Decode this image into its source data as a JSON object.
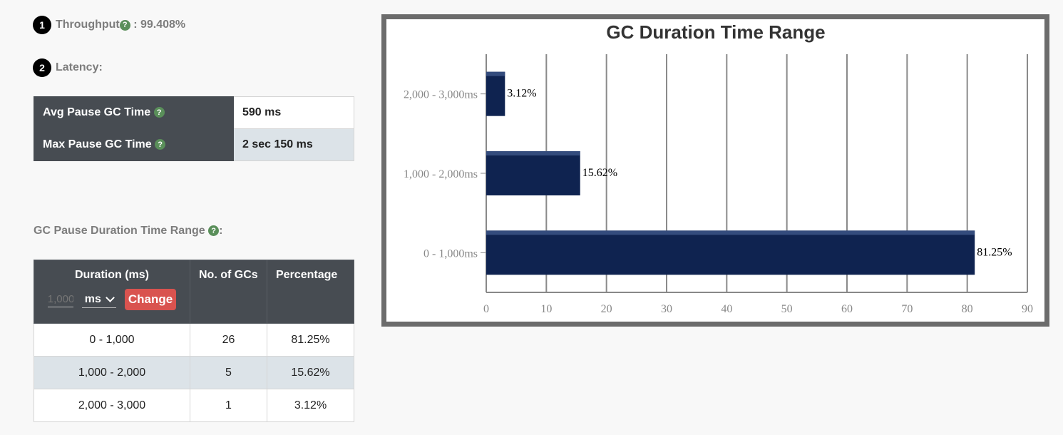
{
  "metrics": {
    "throughput": {
      "badge": "1",
      "label": "Throughput",
      "separator": " : ",
      "value": "99.408%"
    },
    "latency": {
      "badge": "2",
      "label": "Latency:"
    }
  },
  "help_glyph": "?",
  "latency_table": [
    {
      "label": "Avg Pause GC Time",
      "value": "590 ms"
    },
    {
      "label": "Max Pause GC Time",
      "value": "2 sec 150 ms"
    }
  ],
  "duration_section": {
    "title": "GC Pause Duration Time Range",
    "title_suffix": ":",
    "headers": {
      "duration": "Duration (ms)",
      "count": "No. of GCs",
      "percentage": "Percentage"
    },
    "input_placeholder": "1,000",
    "unit": "ms",
    "change_label": "Change",
    "rows": [
      {
        "range": "0 - 1,000",
        "count": "26",
        "pct": "81.25%"
      },
      {
        "range": "1,000 - 2,000",
        "count": "5",
        "pct": "15.62%"
      },
      {
        "range": "2,000 - 3,000",
        "count": "1",
        "pct": "3.12%"
      }
    ]
  },
  "chart_data": {
    "type": "bar",
    "orientation": "horizontal",
    "title": "GC Duration Time Range",
    "categories": [
      "0 - 1,000ms",
      "1,000 - 2,000ms",
      "2,000 - 3,000ms"
    ],
    "values": [
      81.25,
      15.62,
      3.12
    ],
    "labels": [
      "81.25%",
      "15.62%",
      "3.12%"
    ],
    "xlim": [
      0,
      90
    ],
    "ticks": [
      "0",
      "10",
      "20",
      "30",
      "40",
      "50",
      "60",
      "70",
      "80",
      "90"
    ],
    "grid": true,
    "bar_color": "#0f2350"
  }
}
